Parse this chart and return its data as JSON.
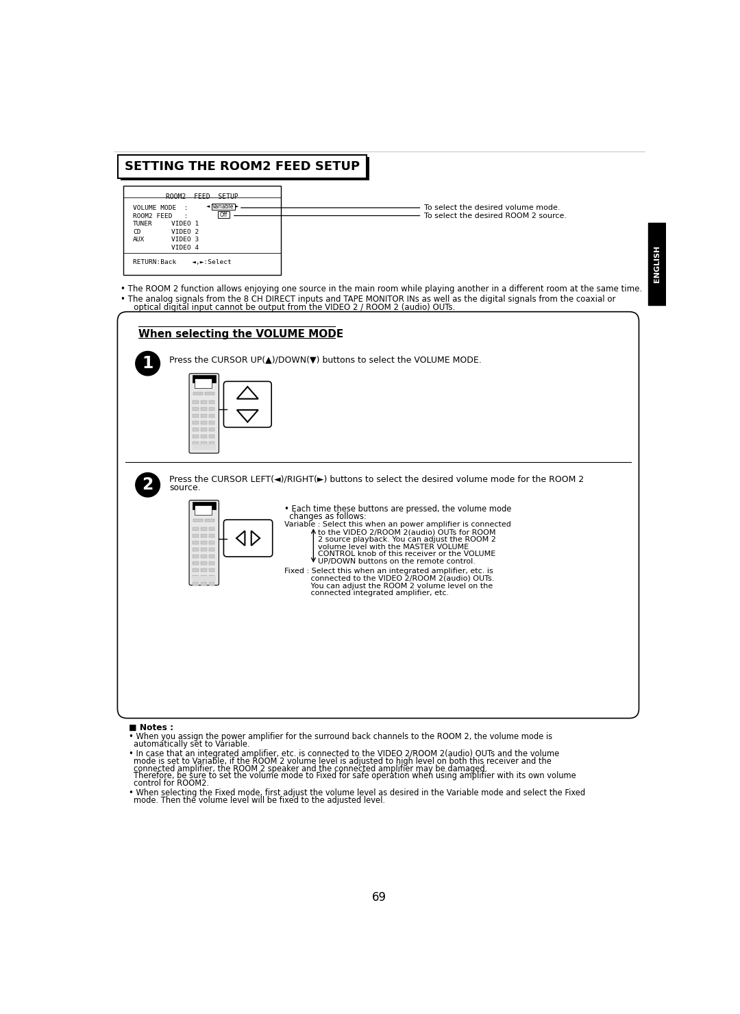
{
  "page_bg": "#ffffff",
  "page_number": "69",
  "title_box_text": "SETTING THE ROOM2 FEED SETUP",
  "english_tab_text": "ENGLISH",
  "annotation1": "To select the desired volume mode.",
  "annotation2": "To select the desired ROOM 2 source.",
  "bullet1": "The ROOM 2 function allows enjoying one source in the main room while playing another in a different room at the same time.",
  "bullet2_line1": "The analog signals from the 8 CH DIRECT inputs and TAPE MONITOR INs as well as the digital signals from the coaxial or",
  "bullet2_line2": "   optical digital input cannot be output from the VIDEO 2 / ROOM 2 (audio) OUTs.",
  "section_title": "When selecting the VOLUME MODE",
  "step1_text": "Press the CURSOR UP(▲)/DOWN(▼) buttons to select the VOLUME MODE.",
  "step2_text_line1": "Press the CURSOR LEFT(◄)/RIGHT(►) buttons to select the desired volume mode for the ROOM 2",
  "step2_text_line2": "source.",
  "bullet_each_line1": "• Each time these buttons are pressed, the volume mode",
  "bullet_each_line2": "  changes as follows:",
  "variable_line1": "Variable : Select this when an power amplifier is connected",
  "variable_line2": "              to the VIDEO 2/ROOM 2(audio) OUTs for ROOM",
  "variable_line3": "              2 source playback. You can adjust the ROOM 2",
  "variable_line4": "              volume level with the MASTER VOLUME",
  "variable_line5": "              CONTROL knob of this receiver or the VOLUME",
  "variable_line6": "              UP/DOWN buttons on the remote control.",
  "fixed_line1": "Fixed : Select this when an integrated amplifier, etc. is",
  "fixed_line2": "           connected to the VIDEO 2/ROOM 2(audio) OUTs.",
  "fixed_line3": "           You can adjust the ROOM 2 volume level on the",
  "fixed_line4": "           connected integrated amplifier, etc.",
  "notes_title": "■ Notes :",
  "note1_line1": "When you assign the power amplifier for the surround back channels to the ROOM 2, the volume mode is",
  "note1_line2": "automatically set to Variable.",
  "note2_line1": "In case that an integrated amplifier, etc. is connected to the VIDEO 2/ROOM 2(audio) OUTs and the volume",
  "note2_line2": "mode is set to Variable, if the ROOM 2 volume level is adjusted to high level on both this receiver and the",
  "note2_line3": "connected amplifier, the ROOM 2 speaker and the connected amplifier may be damaged.",
  "note2_line4": "Therefore, be sure to set the volume mode to Fixed for safe operation when using amplifier with its own volume",
  "note2_line5": "control for ROOM2.",
  "note3_line1": "When selecting the Fixed mode, first adjust the volume level as desired in the Variable mode and select the Fixed",
  "note3_line2": "mode. Then the volume level will be fixed to the adjusted level."
}
